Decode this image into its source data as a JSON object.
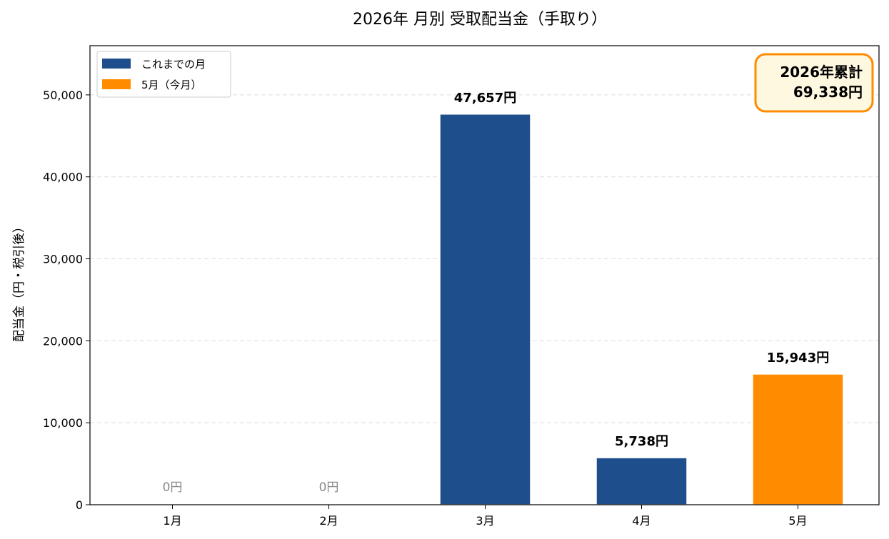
{
  "chart_data": {
    "type": "bar",
    "title": "2026年 月別 受取配当金（手取り）",
    "xlabel": "",
    "ylabel": "配当金（円・税引後）",
    "categories": [
      "1月",
      "2月",
      "3月",
      "4月",
      "5月"
    ],
    "values": [
      0,
      0,
      47657,
      5738,
      15943
    ],
    "value_labels": [
      "0円",
      "0円",
      "47,657円",
      "5,738円",
      "15,943円"
    ],
    "highlight_index": 4,
    "ylim": [
      0,
      56000
    ],
    "yticks": [
      0,
      10000,
      20000,
      30000,
      40000,
      50000
    ],
    "ytick_labels": [
      "0",
      "10,000",
      "20,000",
      "30,000",
      "40,000",
      "50,000"
    ],
    "grid": "y-dashed",
    "legend_placement": "top-left",
    "legend": [
      {
        "label": "これまでの月",
        "color": "#1f4e8c"
      },
      {
        "label": "5月（今月）",
        "color": "#ff8c00"
      }
    ],
    "colors": {
      "past": "#1f4e8c",
      "current": "#ff8c00",
      "zero_label": "#888888"
    },
    "annotation": {
      "line1": "2026年累計",
      "line2": "69,338円",
      "placement": "top-right",
      "border_color": "#ff8c00",
      "fill_color": "#fff8e1"
    }
  }
}
